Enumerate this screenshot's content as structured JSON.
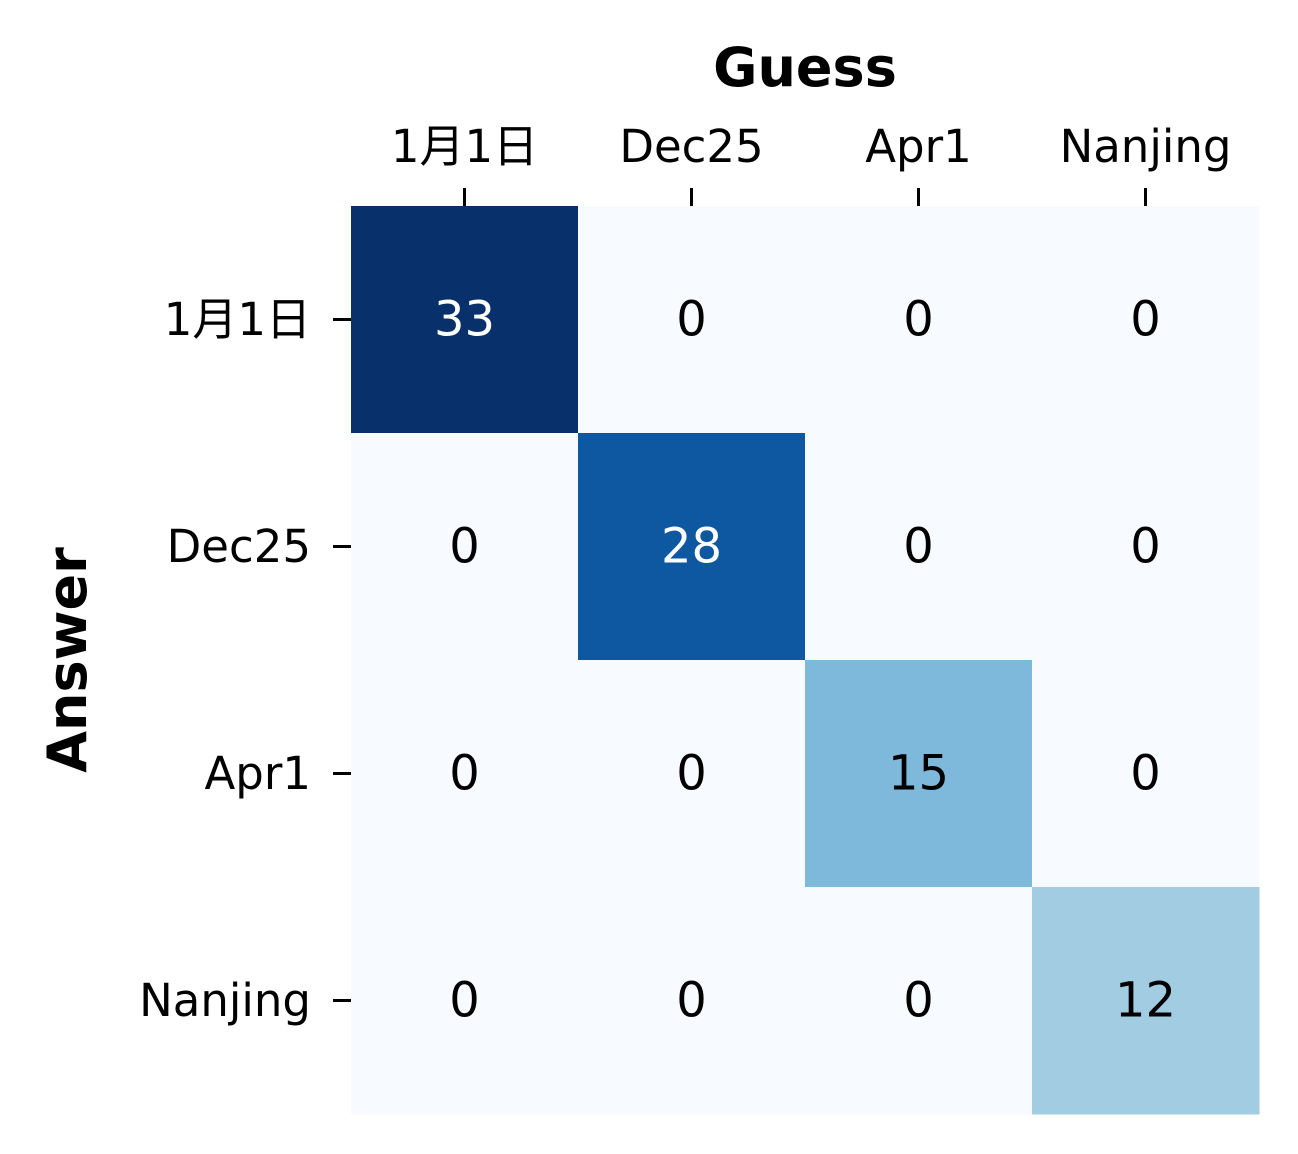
{
  "chart_data": {
    "type": "heatmap",
    "title": "",
    "xlabel": "Guess",
    "ylabel": "Answer",
    "x_categories": [
      "1月1日",
      "Dec25",
      "Apr1",
      "Nanjing"
    ],
    "y_categories": [
      "1月1日",
      "Dec25",
      "Apr1",
      "Nanjing"
    ],
    "values": [
      [
        33,
        0,
        0,
        0
      ],
      [
        0,
        28,
        0,
        0
      ],
      [
        0,
        0,
        15,
        0
      ],
      [
        0,
        0,
        0,
        12
      ]
    ],
    "colormap": "Blues",
    "color_scale": [
      0,
      33
    ],
    "x_axis_position": "top",
    "grid": false,
    "legend": "none",
    "cell_colors": {
      "low": "#f7fbff",
      "high": "#08306b"
    }
  }
}
